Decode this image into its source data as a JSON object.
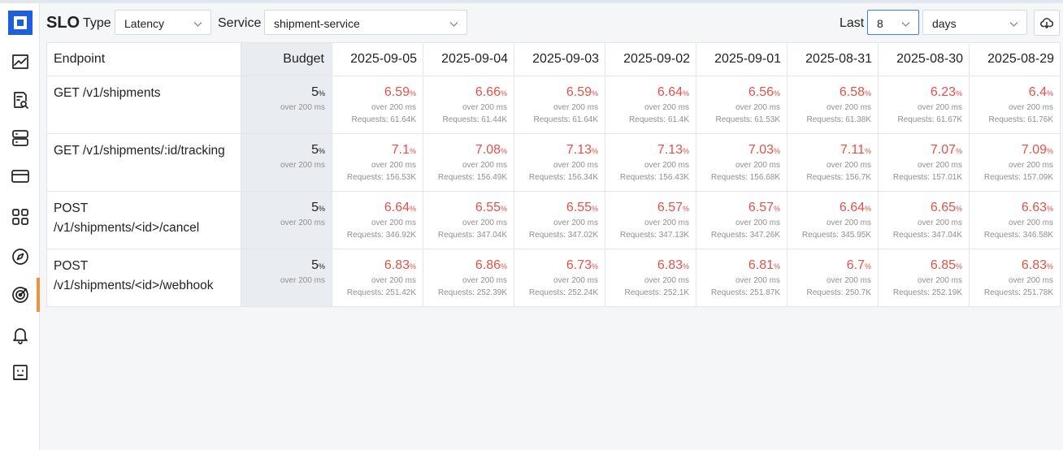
{
  "nav_icons": [
    "logo",
    "chart-line-icon",
    "search-document-icon",
    "server-icon",
    "credit-card-icon",
    "apps-grid-icon",
    "compass-icon",
    "target-icon",
    "bell-icon",
    "robot-icon"
  ],
  "toolbar": {
    "title": "SLO",
    "type_label": "Type",
    "type_value": "Latency",
    "service_label": "Service",
    "service_value": "shipment-service",
    "last_label": "Last",
    "last_value": "8",
    "unit_value": "days"
  },
  "table": {
    "endpoint_header": "Endpoint",
    "budget_header": "Budget",
    "dates": [
      "2025-09-05",
      "2025-09-04",
      "2025-09-03",
      "2025-09-02",
      "2025-09-01",
      "2025-08-31",
      "2025-08-30",
      "2025-08-29"
    ],
    "pct_symbol": "%",
    "threshold_text": "over 200 ms",
    "requests_prefix": "Requests: ",
    "rows": [
      {
        "endpoint": "GET /v1/shipments",
        "budget": "5",
        "cells": [
          {
            "value": "6.59",
            "requests": "61.64K"
          },
          {
            "value": "6.66",
            "requests": "61.44K"
          },
          {
            "value": "6.59",
            "requests": "61.64K"
          },
          {
            "value": "6.64",
            "requests": "61.4K"
          },
          {
            "value": "6.56",
            "requests": "61.53K"
          },
          {
            "value": "6.58",
            "requests": "61.38K"
          },
          {
            "value": "6.23",
            "requests": "61.67K"
          },
          {
            "value": "6.4",
            "requests": "61.76K"
          }
        ]
      },
      {
        "endpoint": "GET /v1/shipments/:id/tracking",
        "budget": "5",
        "cells": [
          {
            "value": "7.1",
            "requests": "156.53K"
          },
          {
            "value": "7.08",
            "requests": "156.49K"
          },
          {
            "value": "7.13",
            "requests": "156.34K"
          },
          {
            "value": "7.13",
            "requests": "156.43K"
          },
          {
            "value": "7.03",
            "requests": "156.68K"
          },
          {
            "value": "7.11",
            "requests": "156.7K"
          },
          {
            "value": "7.07",
            "requests": "157.01K"
          },
          {
            "value": "7.09",
            "requests": "157.09K"
          }
        ]
      },
      {
        "endpoint": "POST /v1/shipments/<id>/cancel",
        "budget": "5",
        "cells": [
          {
            "value": "6.64",
            "requests": "346.92K"
          },
          {
            "value": "6.55",
            "requests": "347.04K"
          },
          {
            "value": "6.55",
            "requests": "347.02K"
          },
          {
            "value": "6.57",
            "requests": "347.13K"
          },
          {
            "value": "6.57",
            "requests": "347.26K"
          },
          {
            "value": "6.64",
            "requests": "345.95K"
          },
          {
            "value": "6.65",
            "requests": "347.04K"
          },
          {
            "value": "6.63",
            "requests": "346.58K"
          }
        ]
      },
      {
        "endpoint": "POST /v1/shipments/<id>/webhook",
        "budget": "5",
        "cells": [
          {
            "value": "6.83",
            "requests": "251.42K"
          },
          {
            "value": "6.86",
            "requests": "252.39K"
          },
          {
            "value": "6.73",
            "requests": "252.24K"
          },
          {
            "value": "6.83",
            "requests": "252.1K"
          },
          {
            "value": "6.81",
            "requests": "251.87K"
          },
          {
            "value": "6.7",
            "requests": "250.7K"
          },
          {
            "value": "6.85",
            "requests": "252.19K"
          },
          {
            "value": "6.83",
            "requests": "251.78K"
          }
        ]
      }
    ]
  },
  "colors": {
    "brand": "#1d5fe0",
    "active_indicator": "#f1913c",
    "violation": "#e5504a",
    "budget_column_bg": "#e9ecf1"
  }
}
